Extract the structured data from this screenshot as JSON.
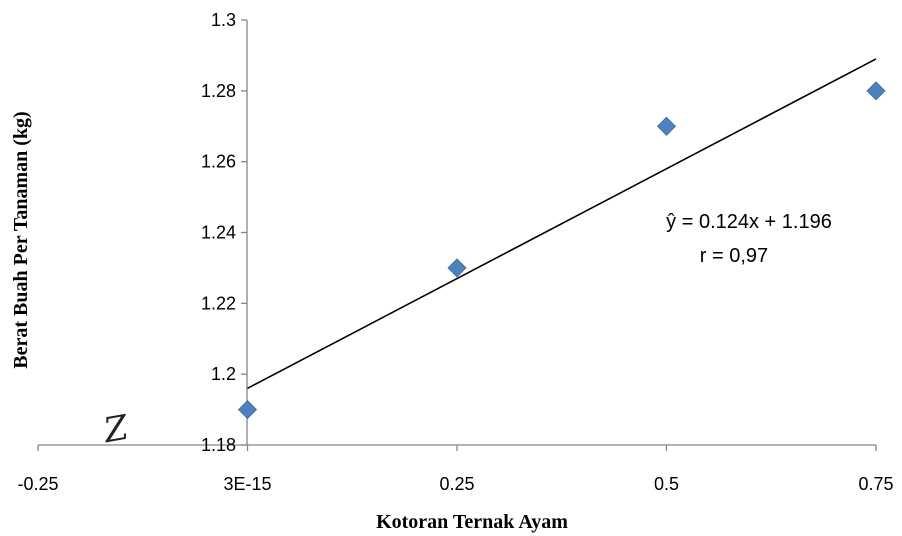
{
  "chart_data": {
    "type": "scatter",
    "xlabel": "Kotoran Ternak Ayam",
    "ylabel": "Berat Buah Per Tanaman (kg)",
    "xlim": [
      -0.25,
      0.75
    ],
    "ylim": [
      1.18,
      1.3
    ],
    "x_tick_values": [
      -0.25,
      0,
      0.25,
      0.5,
      0.75
    ],
    "x_tick_labels": [
      "-0.25",
      "3E-15",
      "0.25",
      "0.5",
      "0.75"
    ],
    "y_tick_values": [
      1.18,
      1.2,
      1.22,
      1.24,
      1.26,
      1.28,
      1.3
    ],
    "y_tick_labels": [
      "1.18",
      "1.2",
      "1.22",
      "1.24",
      "1.26",
      "1.28",
      "1.3"
    ],
    "series": [
      {
        "x": [
          0,
          0.25,
          0.5,
          0.75
        ],
        "y": [
          1.19,
          1.23,
          1.27,
          1.28
        ],
        "marker": "diamond",
        "color": "#4F81BD"
      }
    ],
    "trendline": {
      "slope": 0.124,
      "intercept": 1.196,
      "x_range": [
        0,
        0.75
      ],
      "color": "#000000"
    },
    "annotations": [
      "ŷ = 0.124x + 1.196",
      "r = 0,97"
    ],
    "grid": false,
    "legend": "none"
  },
  "stray_mark": "Z"
}
